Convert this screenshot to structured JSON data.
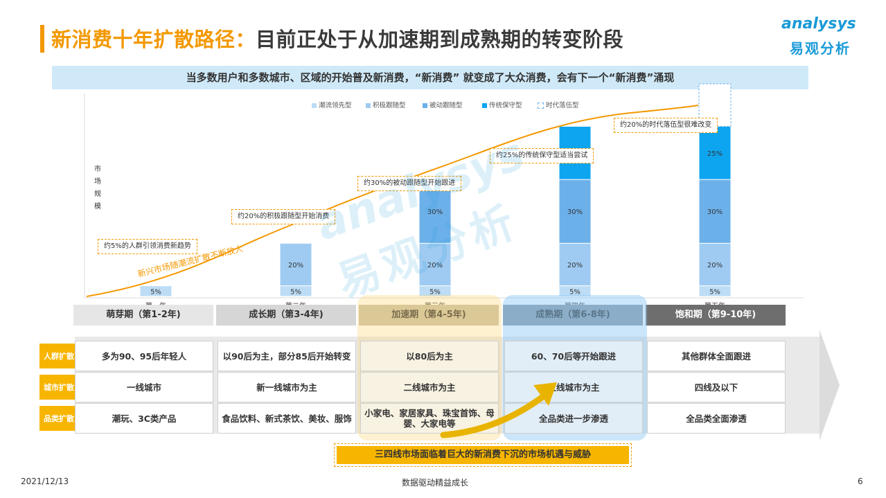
{
  "header": {
    "title_highlight": "新消费十年扩散路径：",
    "title_rest": "目前正处于从加速期到成熟期的转变阶段",
    "logo_en": "analysys",
    "logo_cn": "易观分析"
  },
  "subtitle": "当多数用户和多数城市、区域的开始普及新消费，“新消费” 就变成了大众消费，会有下一个“新消费”涌现",
  "chart_data": {
    "type": "bar",
    "stacked": true,
    "ylabel": "市场规模",
    "categories": [
      "第一年",
      "第二年",
      "第三年",
      "第四年",
      "第五年"
    ],
    "series": [
      {
        "name": "潮流领先型",
        "color": "#BDDCF5",
        "values": [
          5,
          5,
          5,
          5,
          5
        ],
        "labels": [
          "5%",
          "5%",
          "5%",
          "5%",
          "5%"
        ]
      },
      {
        "name": "积极跟随型",
        "color": "#9FCBF2",
        "values": [
          0,
          20,
          20,
          20,
          20
        ],
        "labels": [
          "",
          "20%",
          "20%",
          "20%",
          "20%"
        ]
      },
      {
        "name": "被动跟随型",
        "color": "#6CB0EA",
        "values": [
          0,
          0,
          30,
          30,
          30
        ],
        "labels": [
          "",
          "",
          "30%",
          "30%",
          "30%"
        ]
      },
      {
        "name": "传统保守型",
        "color": "#0EA5F0",
        "values": [
          0,
          0,
          0,
          25,
          25
        ],
        "labels": [
          "",
          "",
          "",
          "25%",
          "25%"
        ]
      },
      {
        "name": "时代落伍型",
        "color": "#ffffff",
        "values": [
          0,
          0,
          0,
          0,
          20
        ],
        "labels": [
          "",
          "",
          "",
          "",
          ""
        ]
      }
    ],
    "annotations": [
      "约5%的人群引领消费新趋势",
      "约20%的积极跟随型开始消费",
      "约30%的被动跟随型开始跟进",
      "约25%的传统保守型适当尝试",
      "约20%的时代落伍型很难改变"
    ],
    "curve_label": "新兴市场随潮流扩散不断放大",
    "grid": false,
    "legend_position": "top"
  },
  "phases": [
    {
      "label": "萌芽期（第1-2年)",
      "bg": "#e6e6e6",
      "fg": "#333333"
    },
    {
      "label": "成长期（第3-4年)",
      "bg": "#d6d6d6",
      "fg": "#333333"
    },
    {
      "label": "加速期（第4-5年)",
      "bg": "#c9c0a8",
      "fg": "#333333"
    },
    {
      "label": "成熟期（第6-8年)",
      "bg": "#8a98a4",
      "fg": "#333333"
    },
    {
      "label": "饱和期（第9-10年)",
      "bg": "#6e6e6e",
      "fg": "#ffffff"
    }
  ],
  "rows": [
    {
      "label": "人群扩散",
      "cells": [
        "多为90、95后年轻人",
        "以90后为主，部分85后开始转变",
        "以80后为主",
        "60、70后等开始跟进",
        "其他群体全面跟进"
      ]
    },
    {
      "label": "城市扩散",
      "cells": [
        "一线城市",
        "新一线城市为主",
        "二线城市为主",
        "三线城市为主",
        "四线及以下"
      ]
    },
    {
      "label": "品类扩散",
      "cells": [
        "潮玩、3C类产品",
        "食品饮料、新式茶饮、美妆、服饰",
        "小家电、家居家具、珠宝首饰、母婴、大家电等",
        "全品类进一步渗透",
        "全品类全面渗透"
      ]
    }
  ],
  "callout": "三四线市场面临着巨大的新消费下沉的市场机遇与威胁",
  "footer": {
    "date": "2021/12/13",
    "center": "数据驱动精益成长",
    "page": "6"
  },
  "colors": {
    "accent": "#F39800",
    "brand": "#1a9ad7",
    "callout_bg": "#F7B500"
  }
}
